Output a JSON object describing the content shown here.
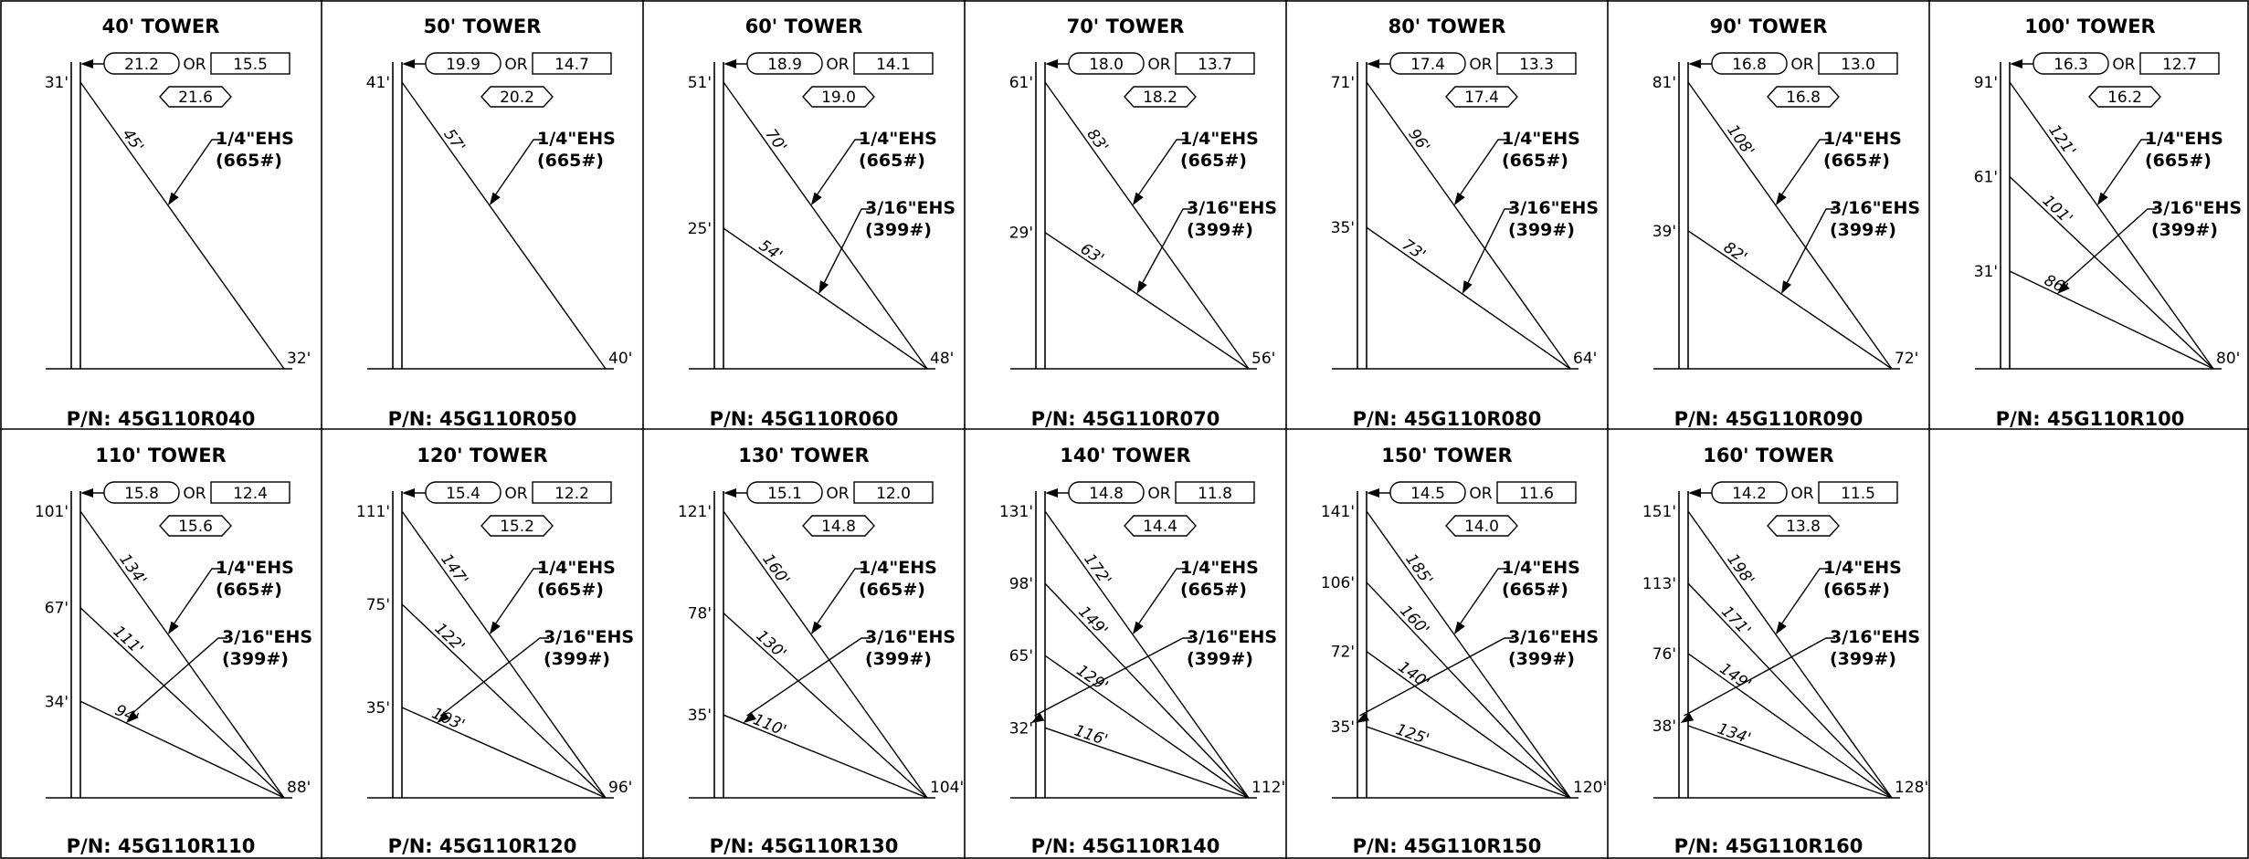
{
  "cells": [
    {
      "title": "40' TOWER",
      "pn": "P/N: 45G110R040",
      "top": "31'",
      "base": "32'",
      "guys": [
        {
          "len": "45'"
        }
      ],
      "box1": "21.2",
      "or": "OR",
      "box2": "15.5",
      "box3": "21.6",
      "wire1": {
        "a": "1/4\"EHS",
        "b": "(665#)"
      },
      "wire2": null
    },
    {
      "title": "50' TOWER",
      "pn": "P/N: 45G110R050",
      "top": "41'",
      "base": "40'",
      "guys": [
        {
          "len": "57'"
        }
      ],
      "box1": "19.9",
      "or": "OR",
      "box2": "14.7",
      "box3": "20.2",
      "wire1": {
        "a": "1/4\"EHS",
        "b": "(665#)"
      },
      "wire2": null
    },
    {
      "title": "60' TOWER",
      "pn": "P/N: 45G110R060",
      "top": "51'",
      "base": "48'",
      "guys": [
        {
          "h": "25'",
          "len": "54'"
        },
        {
          "len": "70'"
        }
      ],
      "box1": "18.9",
      "or": "OR",
      "box2": "14.1",
      "box3": "19.0",
      "wire1": {
        "a": "1/4\"EHS",
        "b": "(665#)"
      },
      "wire2": {
        "a": "3/16\"EHS",
        "b": "(399#)"
      }
    },
    {
      "title": "70' TOWER",
      "pn": "P/N: 45G110R070",
      "top": "61'",
      "base": "56'",
      "guys": [
        {
          "h": "29'",
          "len": "63'"
        },
        {
          "len": "83'"
        }
      ],
      "box1": "18.0",
      "or": "OR",
      "box2": "13.7",
      "box3": "18.2",
      "wire1": {
        "a": "1/4\"EHS",
        "b": "(665#)"
      },
      "wire2": {
        "a": "3/16\"EHS",
        "b": "(399#)"
      }
    },
    {
      "title": "80' TOWER",
      "pn": "P/N: 45G110R080",
      "top": "71'",
      "base": "64'",
      "guys": [
        {
          "h": "35'",
          "len": "73'"
        },
        {
          "len": "96'"
        }
      ],
      "box1": "17.4",
      "or": "OR",
      "box2": "13.3",
      "box3": "17.4",
      "wire1": {
        "a": "1/4\"EHS",
        "b": "(665#)"
      },
      "wire2": {
        "a": "3/16\"EHS",
        "b": "(399#)"
      }
    },
    {
      "title": "90' TOWER",
      "pn": "P/N: 45G110R090",
      "top": "81'",
      "base": "72'",
      "guys": [
        {
          "h": "39'",
          "len": "82'"
        },
        {
          "len": "108'"
        }
      ],
      "box1": "16.8",
      "or": "OR",
      "box2": "13.0",
      "box3": "16.8",
      "wire1": {
        "a": "1/4\"EHS",
        "b": "(665#)"
      },
      "wire2": {
        "a": "3/16\"EHS",
        "b": "(399#)"
      }
    },
    {
      "title": "100' TOWER",
      "pn": "P/N: 45G110R100",
      "top": "91'",
      "base": "80'",
      "guys": [
        {
          "h": "31'",
          "len": "86'"
        },
        {
          "h": "61'",
          "len": "101'"
        },
        {
          "len": "121'"
        }
      ],
      "box1": "16.3",
      "or": "OR",
      "box2": "12.7",
      "box3": "16.2",
      "wire1": {
        "a": "1/4\"EHS",
        "b": "(665#)"
      },
      "wire2": {
        "a": "3/16\"EHS",
        "b": "(399#)"
      }
    },
    {
      "title": "110' TOWER",
      "pn": "P/N: 45G110R110",
      "top": "101'",
      "base": "88'",
      "guys": [
        {
          "h": "34'",
          "len": "94'"
        },
        {
          "h": "67'",
          "len": "111'"
        },
        {
          "len": "134'"
        }
      ],
      "box1": "15.8",
      "or": "OR",
      "box2": "12.4",
      "box3": "15.6",
      "wire1": {
        "a": "1/4\"EHS",
        "b": "(665#)"
      },
      "wire2": {
        "a": "3/16\"EHS",
        "b": "(399#)"
      }
    },
    {
      "title": "120' TOWER",
      "pn": "P/N: 45G110R120",
      "top": "111'",
      "base": "96'",
      "guys": [
        {
          "h": "35'",
          "len": "103'"
        },
        {
          "h": "75'",
          "len": "122'"
        },
        {
          "len": "147'"
        }
      ],
      "box1": "15.4",
      "or": "OR",
      "box2": "12.2",
      "box3": "15.2",
      "wire1": {
        "a": "1/4\"EHS",
        "b": "(665#)"
      },
      "wire2": {
        "a": "3/16\"EHS",
        "b": "(399#)"
      }
    },
    {
      "title": "130' TOWER",
      "pn": "P/N: 45G110R130",
      "top": "121'",
      "base": "104'",
      "guys": [
        {
          "h": "35'",
          "len": "110'"
        },
        {
          "h": "78'",
          "len": "130'"
        },
        {
          "len": "160'"
        }
      ],
      "box1": "15.1",
      "or": "OR",
      "box2": "12.0",
      "box3": "14.8",
      "wire1": {
        "a": "1/4\"EHS",
        "b": "(665#)"
      },
      "wire2": {
        "a": "3/16\"EHS",
        "b": "(399#)"
      }
    },
    {
      "title": "140' TOWER",
      "pn": "P/N: 45G110R140",
      "top": "131'",
      "base": "112'",
      "guys": [
        {
          "h": "32'",
          "len": "116'"
        },
        {
          "h": "65'",
          "len": "129'"
        },
        {
          "h": "98'",
          "len": "149'"
        },
        {
          "len": "172'"
        }
      ],
      "box1": "14.8",
      "or": "OR",
      "box2": "11.8",
      "box3": "14.4",
      "wire1": {
        "a": "1/4\"EHS",
        "b": "(665#)"
      },
      "wire2": {
        "a": "3/16\"EHS",
        "b": "(399#)"
      }
    },
    {
      "title": "150' TOWER",
      "pn": "P/N: 45G110R150",
      "top": "141'",
      "base": "120'",
      "guys": [
        {
          "h": "35'",
          "len": "125'"
        },
        {
          "h": "72'",
          "len": "140'"
        },
        {
          "h": "106'",
          "len": "160'"
        },
        {
          "len": "185'"
        }
      ],
      "box1": "14.5",
      "or": "OR",
      "box2": "11.6",
      "box3": "14.0",
      "wire1": {
        "a": "1/4\"EHS",
        "b": "(665#)"
      },
      "wire2": {
        "a": "3/16\"EHS",
        "b": "(399#)"
      }
    },
    {
      "title": "160' TOWER",
      "pn": "P/N: 45G110R160",
      "top": "151'",
      "base": "128'",
      "guys": [
        {
          "h": "38'",
          "len": "134'"
        },
        {
          "h": "76'",
          "len": "149'"
        },
        {
          "h": "113'",
          "len": "171'"
        },
        {
          "len": "198'"
        }
      ],
      "box1": "14.2",
      "or": "OR",
      "box2": "11.5",
      "box3": "13.8",
      "wire1": {
        "a": "1/4\"EHS",
        "b": "(665#)"
      },
      "wire2": {
        "a": "3/16\"EHS",
        "b": "(399#)"
      }
    }
  ]
}
